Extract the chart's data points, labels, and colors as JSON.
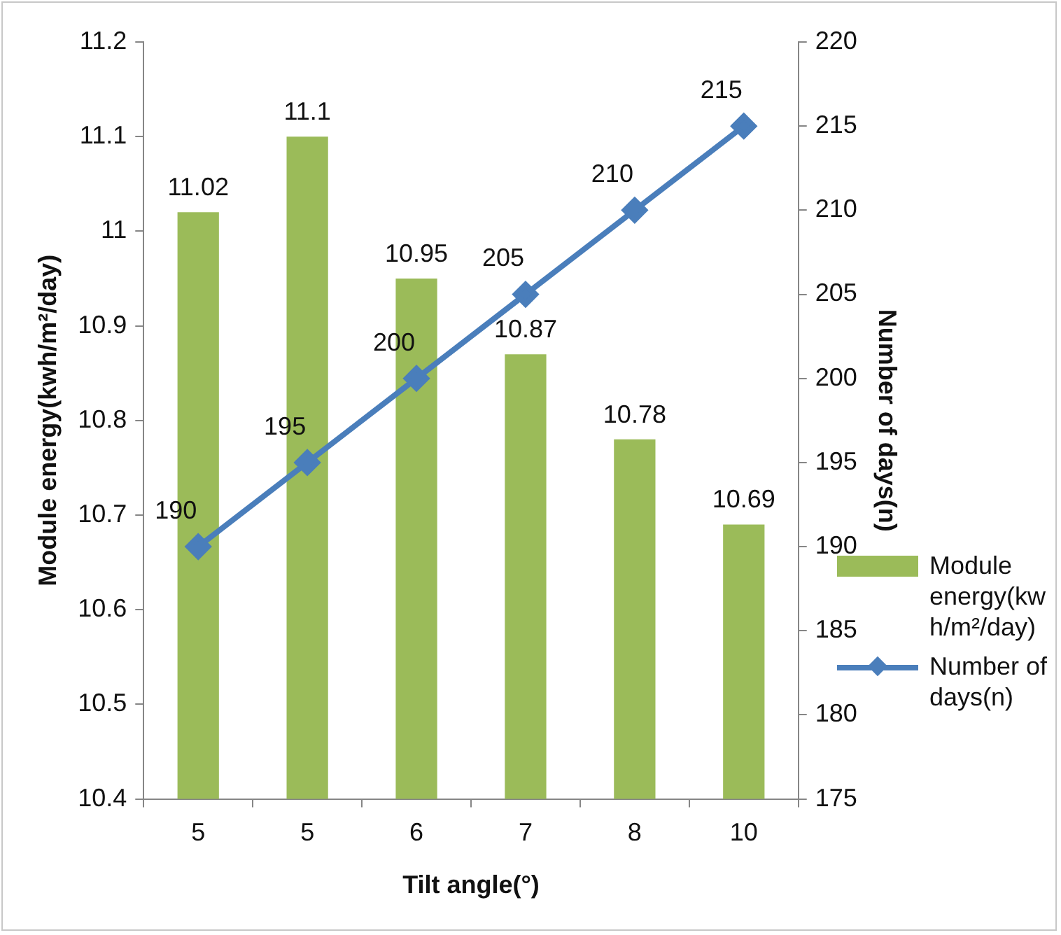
{
  "chart_data": {
    "type": "bar",
    "xlabel": "Tilt angle(°)",
    "ylabel": "Module energy(kwh/m²/day)",
    "y2label": "Number of days(n)",
    "categories": [
      "5",
      "5",
      "6",
      "7",
      "8",
      "10"
    ],
    "series": [
      {
        "name": "Module energy(kwh/m²/day)",
        "color": "#9bbb59",
        "values": [
          11.02,
          11.1,
          10.95,
          10.87,
          10.78,
          10.69
        ]
      },
      {
        "name": "Number of days(n)",
        "type": "line",
        "axis": "y2",
        "color": "#4a7ebb",
        "values": [
          190,
          195,
          200,
          205,
          210,
          215
        ]
      }
    ],
    "ylim": [
      10.4,
      11.2
    ],
    "yticks": [
      10.4,
      10.5,
      10.6,
      10.7,
      10.8,
      10.9,
      11,
      11.1,
      11.2
    ],
    "y2lim": [
      175,
      220
    ],
    "y2ticks": [
      175,
      180,
      185,
      190,
      195,
      200,
      205,
      210,
      215,
      220
    ],
    "marker": "diamond",
    "legend": "right",
    "data_labels": true
  }
}
